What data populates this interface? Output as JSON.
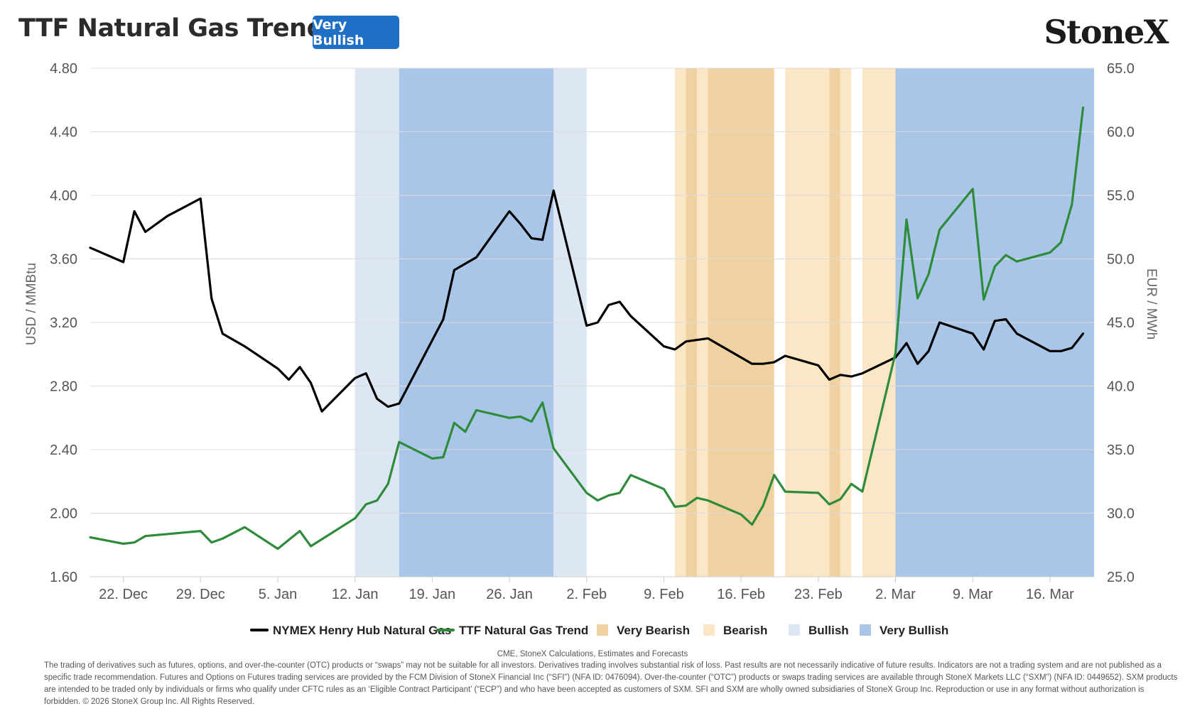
{
  "header": {
    "title": "TTF Natural Gas Trend",
    "badge": "Very Bullish",
    "logo": "StoneX"
  },
  "colors": {
    "henry_hub": "#000000",
    "ttf": "#2e8b3a",
    "very_bearish": "#f0d2a2",
    "bearish": "#fbe6c6",
    "bullish": "#dde7f4",
    "very_bullish": "#a9c6e8",
    "badge": "#1f6fc4"
  },
  "chart_data": {
    "type": "line",
    "title": "TTF Natural Gas Trend",
    "x_tick_labels": [
      "22. Dec",
      "29. Dec",
      "5. Jan",
      "12. Jan",
      "19. Jan",
      "26. Jan",
      "2. Feb",
      "9. Feb",
      "16. Feb",
      "23. Feb",
      "2. Mar",
      "9. Mar",
      "16. Mar"
    ],
    "x_range": [
      "2025-12-19",
      "2026-03-20"
    ],
    "y_left": {
      "label": "USD / MMBtu",
      "range": [
        1.6,
        4.8
      ],
      "ticks": [
        "1.60",
        "2.00",
        "2.40",
        "2.80",
        "3.20",
        "3.60",
        "4.00",
        "4.40",
        "4.80"
      ]
    },
    "y_right": {
      "label": "EUR / MWh",
      "range": [
        25.0,
        65.0
      ],
      "ticks": [
        "25.0",
        "30.0",
        "35.0",
        "40.0",
        "45.0",
        "50.0",
        "55.0",
        "60.0",
        "65.0"
      ]
    },
    "grid": true,
    "legend_position": "bottom-center",
    "series": [
      {
        "name": "NYMEX Henry Hub Natural Gas",
        "axis": "left",
        "points": [
          [
            "2025-12-19",
            3.67
          ],
          [
            "2025-12-22",
            3.58
          ],
          [
            "2025-12-23",
            3.9
          ],
          [
            "2025-12-24",
            3.77
          ],
          [
            "2025-12-26",
            3.87
          ],
          [
            "2025-12-29",
            3.98
          ],
          [
            "2025-12-30",
            3.35
          ],
          [
            "2025-12-31",
            3.13
          ],
          [
            "2026-01-02",
            3.05
          ],
          [
            "2026-01-05",
            2.91
          ],
          [
            "2026-01-06",
            2.84
          ],
          [
            "2026-01-07",
            2.92
          ],
          [
            "2026-01-08",
            2.82
          ],
          [
            "2026-01-09",
            2.64
          ],
          [
            "2026-01-12",
            2.85
          ],
          [
            "2026-01-13",
            2.88
          ],
          [
            "2026-01-14",
            2.72
          ],
          [
            "2026-01-15",
            2.67
          ],
          [
            "2026-01-16",
            2.69
          ],
          [
            "2026-01-20",
            3.22
          ],
          [
            "2026-01-21",
            3.53
          ],
          [
            "2026-01-22",
            3.57
          ],
          [
            "2026-01-23",
            3.61
          ],
          [
            "2026-01-26",
            3.9
          ],
          [
            "2026-01-27",
            3.82
          ],
          [
            "2026-01-28",
            3.73
          ],
          [
            "2026-01-29",
            3.72
          ],
          [
            "2026-01-30",
            4.03
          ],
          [
            "2026-02-02",
            3.18
          ],
          [
            "2026-02-03",
            3.2
          ],
          [
            "2026-02-04",
            3.31
          ],
          [
            "2026-02-05",
            3.33
          ],
          [
            "2026-02-06",
            3.24
          ],
          [
            "2026-02-09",
            3.05
          ],
          [
            "2026-02-10",
            3.03
          ],
          [
            "2026-02-11",
            3.08
          ],
          [
            "2026-02-12",
            3.09
          ],
          [
            "2026-02-13",
            3.1
          ],
          [
            "2026-02-17",
            2.94
          ],
          [
            "2026-02-18",
            2.94
          ],
          [
            "2026-02-19",
            2.95
          ],
          [
            "2026-02-20",
            2.99
          ],
          [
            "2026-02-23",
            2.93
          ],
          [
            "2026-02-24",
            2.84
          ],
          [
            "2026-02-25",
            2.87
          ],
          [
            "2026-02-26",
            2.86
          ],
          [
            "2026-02-27",
            2.88
          ],
          [
            "2026-03-02",
            2.98
          ],
          [
            "2026-03-03",
            3.07
          ],
          [
            "2026-03-04",
            2.94
          ],
          [
            "2026-03-05",
            3.02
          ],
          [
            "2026-03-06",
            3.2
          ],
          [
            "2026-03-09",
            3.13
          ],
          [
            "2026-03-10",
            3.03
          ],
          [
            "2026-03-11",
            3.21
          ],
          [
            "2026-03-12",
            3.22
          ],
          [
            "2026-03-13",
            3.13
          ],
          [
            "2026-03-16",
            3.02
          ],
          [
            "2026-03-17",
            3.02
          ],
          [
            "2026-03-18",
            3.04
          ],
          [
            "2026-03-19",
            3.13
          ]
        ]
      },
      {
        "name": "TTF Natural Gas Trend",
        "axis": "right",
        "points": [
          [
            "2025-12-19",
            28.1
          ],
          [
            "2025-12-22",
            27.6
          ],
          [
            "2025-12-23",
            27.7
          ],
          [
            "2025-12-24",
            28.2
          ],
          [
            "2025-12-29",
            28.6
          ],
          [
            "2025-12-30",
            27.7
          ],
          [
            "2025-12-31",
            28.0
          ],
          [
            "2026-01-02",
            28.9
          ],
          [
            "2026-01-05",
            27.2
          ],
          [
            "2026-01-07",
            28.6
          ],
          [
            "2026-01-08",
            27.4
          ],
          [
            "2026-01-12",
            29.6
          ],
          [
            "2026-01-13",
            30.7
          ],
          [
            "2026-01-14",
            31.0
          ],
          [
            "2026-01-15",
            32.3
          ],
          [
            "2026-01-16",
            35.6
          ],
          [
            "2026-01-19",
            34.3
          ],
          [
            "2026-01-20",
            34.4
          ],
          [
            "2026-01-21",
            37.1
          ],
          [
            "2026-01-22",
            36.4
          ],
          [
            "2026-01-23",
            38.1
          ],
          [
            "2026-01-26",
            37.5
          ],
          [
            "2026-01-27",
            37.6
          ],
          [
            "2026-01-28",
            37.2
          ],
          [
            "2026-01-29",
            38.7
          ],
          [
            "2026-01-30",
            35.1
          ],
          [
            "2026-02-02",
            31.6
          ],
          [
            "2026-02-03",
            31.0
          ],
          [
            "2026-02-04",
            31.4
          ],
          [
            "2026-02-05",
            31.6
          ],
          [
            "2026-02-06",
            33.0
          ],
          [
            "2026-02-09",
            31.9
          ],
          [
            "2026-02-10",
            30.5
          ],
          [
            "2026-02-11",
            30.6
          ],
          [
            "2026-02-12",
            31.2
          ],
          [
            "2026-02-13",
            31.0
          ],
          [
            "2026-02-16",
            29.9
          ],
          [
            "2026-02-17",
            29.1
          ],
          [
            "2026-02-18",
            30.6
          ],
          [
            "2026-02-19",
            33.0
          ],
          [
            "2026-02-20",
            31.7
          ],
          [
            "2026-02-23",
            31.6
          ],
          [
            "2026-02-24",
            30.7
          ],
          [
            "2026-02-25",
            31.1
          ],
          [
            "2026-02-26",
            32.3
          ],
          [
            "2026-02-27",
            31.7
          ],
          [
            "2026-03-02",
            42.6
          ],
          [
            "2026-03-03",
            53.1
          ],
          [
            "2026-03-04",
            46.9
          ],
          [
            "2026-03-05",
            48.8
          ],
          [
            "2026-03-06",
            52.3
          ],
          [
            "2026-03-09",
            55.5
          ],
          [
            "2026-03-10",
            46.8
          ],
          [
            "2026-03-11",
            49.4
          ],
          [
            "2026-03-12",
            50.3
          ],
          [
            "2026-03-13",
            49.8
          ],
          [
            "2026-03-16",
            50.5
          ],
          [
            "2026-03-17",
            51.3
          ],
          [
            "2026-03-18",
            54.3
          ],
          [
            "2026-03-19",
            61.9
          ]
        ]
      }
    ],
    "trend_bands": [
      {
        "from": "2026-01-12",
        "to": "2026-01-16",
        "signal": "Bullish"
      },
      {
        "from": "2026-01-16",
        "to": "2026-01-30",
        "signal": "Very Bullish"
      },
      {
        "from": "2026-01-30",
        "to": "2026-02-02",
        "signal": "Bullish"
      },
      {
        "from": "2026-02-10",
        "to": "2026-02-11",
        "signal": "Bearish"
      },
      {
        "from": "2026-02-11",
        "to": "2026-02-12",
        "signal": "Very Bearish"
      },
      {
        "from": "2026-02-12",
        "to": "2026-02-13",
        "signal": "Bearish"
      },
      {
        "from": "2026-02-13",
        "to": "2026-02-19",
        "signal": "Very Bearish"
      },
      {
        "from": "2026-02-20",
        "to": "2026-02-24",
        "signal": "Bearish"
      },
      {
        "from": "2026-02-24",
        "to": "2026-02-25",
        "signal": "Very Bearish"
      },
      {
        "from": "2026-02-25",
        "to": "2026-02-26",
        "signal": "Bearish"
      },
      {
        "from": "2026-02-27",
        "to": "2026-03-02",
        "signal": "Bearish"
      },
      {
        "from": "2026-03-02",
        "to": "2026-03-19",
        "signal": "Very Bullish"
      }
    ],
    "legend": [
      {
        "label": "NYMEX Henry Hub Natural Gas",
        "kind": "line",
        "color_key": "henry_hub"
      },
      {
        "label": "TTF Natural Gas Trend",
        "kind": "line",
        "color_key": "ttf"
      },
      {
        "label": "Very Bearish",
        "kind": "swatch",
        "color_key": "very_bearish"
      },
      {
        "label": "Bearish",
        "kind": "swatch",
        "color_key": "bearish"
      },
      {
        "label": "Bullish",
        "kind": "swatch",
        "color_key": "bullish"
      },
      {
        "label": "Very Bullish",
        "kind": "swatch",
        "color_key": "very_bullish"
      }
    ]
  },
  "footer": {
    "source": "CME, StoneX Calculations, Estimates and Forecasts",
    "disclaimer": "The trading of derivatives such as futures, options, and over-the-counter (OTC) products or “swaps” may not be suitable for all investors. Derivatives trading involves substantial risk of loss. Past results are not necessarily indicative of future results. Indicators are not a trading system and are not published as a specific trade recommendation. Futures and Options on Futures trading services are provided by the FCM Division of StoneX Financial Inc (“SFI”) (NFA ID: 0476094). Over-the-counter (“OTC”) products or swaps trading services are available through StoneX Markets LLC (“SXM”) (NFA ID: 0449652). SXM products are intended to be traded only by individuals or firms who qualify under CFTC rules as an ‘Eligible Contract Participant’ (“ECP”) and who have been accepted as customers of SXM. SFI and SXM are wholly owned subsidiaries of StoneX Group Inc. Reproduction or use in any format without authorization is forbidden. © 2026 StoneX Group Inc. All Rights Reserved."
  }
}
